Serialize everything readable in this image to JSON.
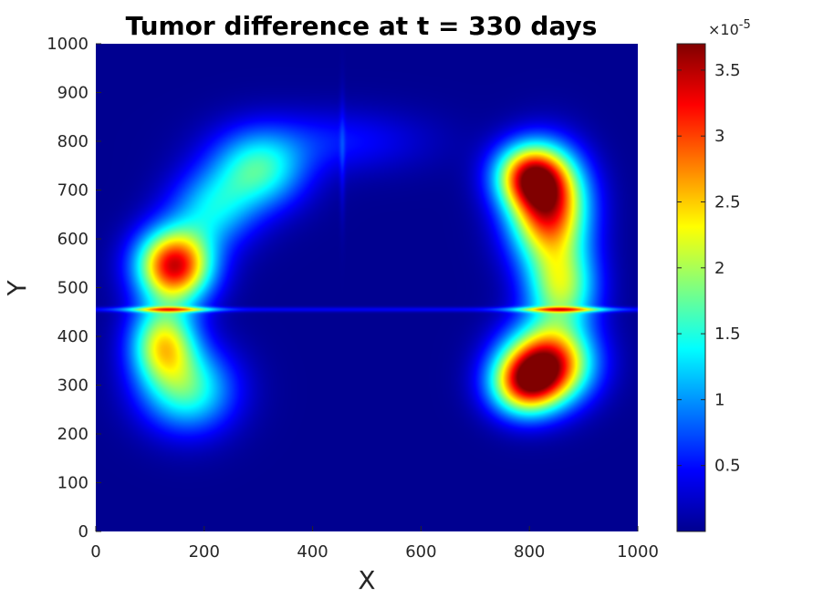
{
  "chart_data": {
    "type": "heatmap",
    "title": "Tumor difference at t = 330 days",
    "xlabel": "X",
    "ylabel": "Y",
    "xlim": [
      0,
      1000
    ],
    "ylim": [
      0,
      1000
    ],
    "xticks": [
      0,
      200,
      400,
      600,
      800,
      1000
    ],
    "yticks": [
      0,
      100,
      200,
      300,
      400,
      500,
      600,
      700,
      800,
      900,
      1000
    ],
    "colormap": "jet",
    "colorbar": {
      "range": [
        0,
        3.7
      ],
      "ticks": [
        0.5,
        1,
        1.5,
        2,
        2.5,
        3,
        3.5
      ],
      "tick_labels": [
        "0.5",
        "1",
        "1.5",
        "2",
        "2.5",
        "3",
        "3.5"
      ],
      "exponent_label": "×10",
      "exponent_power": "-5"
    },
    "hotspots": [
      {
        "x": 145,
        "y": 545,
        "value": 3.6
      },
      {
        "x": 125,
        "y": 375,
        "value": 2.6
      },
      {
        "x": 290,
        "y": 730,
        "value": 2.0
      },
      {
        "x": 830,
        "y": 650,
        "value": 3.6
      },
      {
        "x": 830,
        "y": 345,
        "value": 3.6
      },
      {
        "x": 140,
        "y": 455,
        "value": 3.4
      },
      {
        "x": 860,
        "y": 455,
        "value": 3.5
      }
    ]
  }
}
